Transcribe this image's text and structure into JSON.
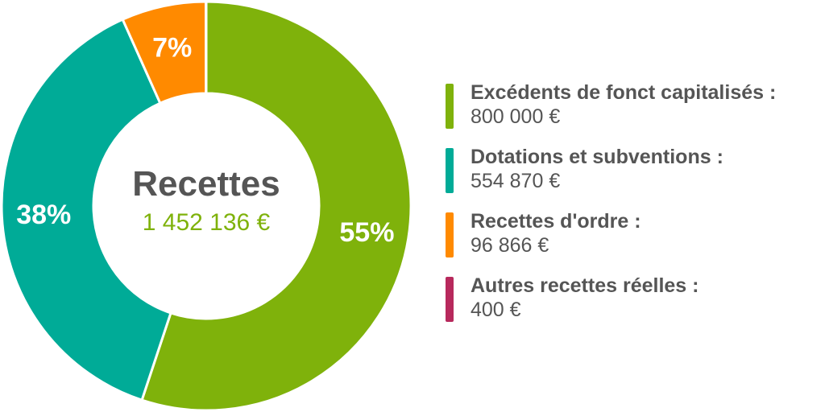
{
  "chart_data": {
    "type": "pie",
    "title": "Recettes",
    "total": "1 452 136 €",
    "colors": {
      "title": "#555555",
      "total": "#7fb20b",
      "labels": "#555555",
      "percent_text": "#ffffff"
    },
    "slices": [
      {
        "label": "Excédents de fonct capitalisés :",
        "value_text": "800 000 €",
        "value": 800000,
        "percent_label": "55%",
        "color": "#7fb20b"
      },
      {
        "label": "Dotations et subventions :",
        "value_text": "554 870 €",
        "value": 554870,
        "percent_label": "38%",
        "color": "#00ab97"
      },
      {
        "label": "Recettes d'ordre :",
        "value_text": "96 866 €",
        "value": 96866,
        "percent_label": "7%",
        "color": "#ff8a00"
      },
      {
        "label": "Autres recettes réelles :",
        "value_text": "400 €",
        "value": 400,
        "percent_label": "",
        "color": "#b7295c"
      }
    ],
    "legend_position": "right"
  }
}
